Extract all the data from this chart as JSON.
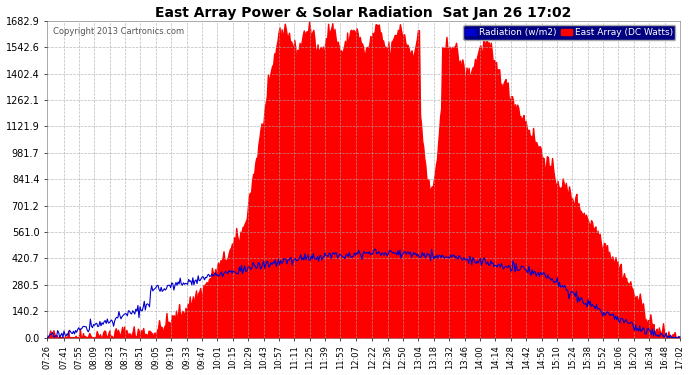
{
  "title": "East Array Power & Solar Radiation  Sat Jan 26 17:02",
  "copyright": "Copyright 2013 Cartronics.com",
  "legend_radiation": "Radiation (w/m2)",
  "legend_east": "East Array (DC Watts)",
  "ylim": [
    0,
    1682.9
  ],
  "yticks": [
    0.0,
    140.2,
    280.5,
    420.7,
    561.0,
    701.2,
    841.4,
    981.7,
    1121.9,
    1262.1,
    1402.4,
    1542.6,
    1682.9
  ],
  "bg_color": "#ffffff",
  "plot_bg_color": "#ffffff",
  "grid_color": "#aaaaaa",
  "red_color": "#ff0000",
  "blue_color": "#0000cc",
  "title_color": "#000000",
  "tick_color": "#000000",
  "xtick_labels": [
    "07:26",
    "07:41",
    "07:55",
    "08:09",
    "08:23",
    "08:37",
    "08:51",
    "09:05",
    "09:19",
    "09:33",
    "09:47",
    "10:01",
    "10:15",
    "10:29",
    "10:43",
    "10:57",
    "11:11",
    "11:25",
    "11:39",
    "11:53",
    "12:07",
    "12:22",
    "12:36",
    "12:50",
    "13:04",
    "13:18",
    "13:32",
    "13:46",
    "14:00",
    "14:14",
    "14:28",
    "14:42",
    "14:56",
    "15:10",
    "15:24",
    "15:38",
    "15:52",
    "16:06",
    "16:20",
    "16:34",
    "16:48",
    "17:02"
  ]
}
